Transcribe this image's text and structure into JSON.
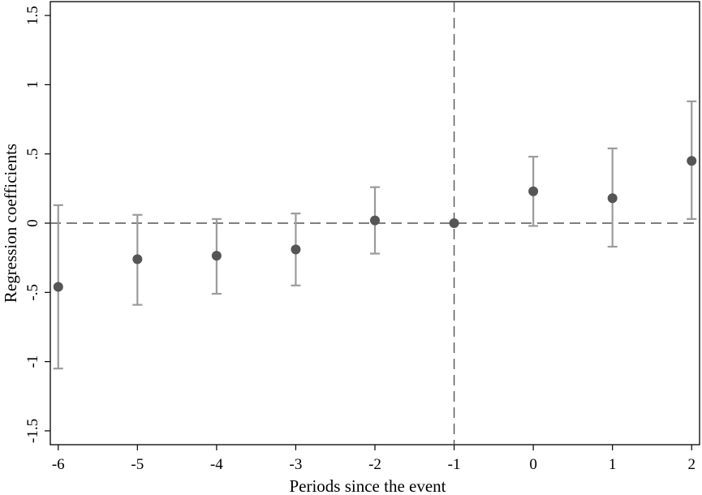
{
  "chart_data": {
    "type": "scatter",
    "title": "",
    "xlabel": "Periods since the event",
    "ylabel": "Regression coefficients",
    "x": [
      -6,
      -5,
      -4,
      -3,
      -2,
      -1,
      0,
      1,
      2
    ],
    "coef": [
      -0.46,
      -0.26,
      -0.235,
      -0.19,
      0.02,
      0.0,
      0.23,
      0.18,
      0.45
    ],
    "ci_low": [
      -1.05,
      -0.59,
      -0.51,
      -0.45,
      -0.22,
      0.0,
      -0.02,
      -0.17,
      0.03
    ],
    "ci_high": [
      0.13,
      0.06,
      0.03,
      0.07,
      0.26,
      0.0,
      0.48,
      0.54,
      0.88
    ],
    "xticks": [
      -6,
      -5,
      -4,
      -3,
      -2,
      -1,
      0,
      1,
      2
    ],
    "xtick_labels": [
      "-6",
      "-5",
      "-4",
      "-3",
      "-2",
      "-1",
      "0",
      "1",
      "2"
    ],
    "yticks": [
      -1.5,
      -1,
      -0.5,
      0,
      0.5,
      1,
      1.5
    ],
    "ytick_labels": [
      "-1.5",
      "-1",
      "-.5",
      "0",
      ".5",
      "1",
      "1.5"
    ],
    "xlim": [
      -6.1,
      2.1
    ],
    "ylim": [
      -1.6,
      1.6
    ],
    "reference_lines": {
      "y": 0,
      "x": -1
    },
    "grid": false,
    "colors": {
      "point": "#555555",
      "ci": "#9b9b9b",
      "reference": "#555555"
    }
  }
}
